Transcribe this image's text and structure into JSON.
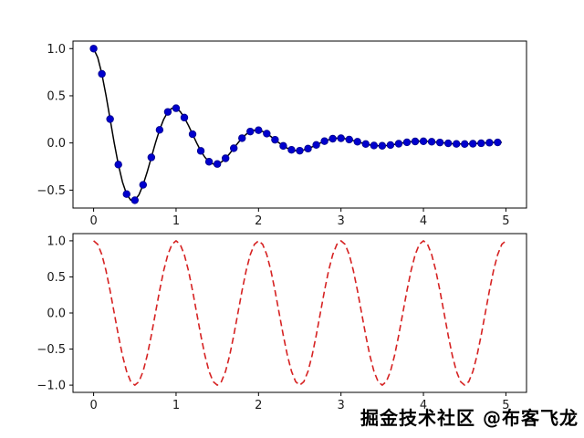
{
  "watermark": {
    "text": "掘金技术社区 @布客飞龙"
  },
  "colors": {
    "frame": "#000000",
    "damped_line": "#000000",
    "marker_blue": "#0000cd",
    "cosine_red": "#d62222",
    "background": "#ffffff"
  },
  "chart_data": [
    {
      "id": "top",
      "type": "line",
      "title": "",
      "xlabel": "",
      "ylabel": "",
      "xlim": [
        -0.25,
        5.25
      ],
      "ylim": [
        -0.69,
        1.08
      ],
      "grid": false,
      "legend": "none",
      "xticks": [
        0,
        1,
        2,
        3,
        4,
        5
      ],
      "xtick_labels": [
        "0",
        "1",
        "2",
        "3",
        "4",
        "5"
      ],
      "yticks": [
        1.0,
        0.5,
        0.0,
        -0.5
      ],
      "ytick_labels": [
        "1.0",
        "0.5",
        "0.0",
        "−0.5"
      ],
      "series": [
        {
          "name": "exp(-t)*cos(2*pi*t)",
          "style": "solid",
          "color": "#000000",
          "linewidth": 1.5,
          "x_start": 0,
          "x_step": 0.05,
          "markers": {
            "every": 2,
            "color": "#0000cd",
            "edge": "#00008b",
            "radius": 3.8
          },
          "values": [
            1.0,
            0.905,
            0.732,
            0.506,
            0.253,
            0.0,
            -0.229,
            -0.414,
            -0.542,
            -0.606,
            -0.607,
            -0.549,
            -0.444,
            -0.307,
            -0.153,
            0.0,
            0.139,
            0.251,
            0.329,
            0.368,
            0.368,
            0.333,
            0.269,
            0.186,
            0.093,
            0.0,
            -0.084,
            -0.152,
            -0.199,
            -0.223,
            -0.223,
            -0.202,
            -0.163,
            -0.113,
            -0.056,
            0.0,
            0.051,
            0.092,
            0.121,
            0.135,
            0.135,
            0.122,
            0.099,
            0.068,
            0.034,
            0.0,
            -0.031,
            -0.056,
            -0.073,
            -0.082,
            -0.082,
            -0.074,
            -0.06,
            -0.042,
            -0.021,
            0.0,
            0.019,
            0.034,
            0.045,
            0.05,
            0.05,
            0.045,
            0.036,
            0.025,
            0.013,
            0.0,
            -0.011,
            -0.021,
            -0.027,
            -0.03,
            -0.03,
            -0.027,
            -0.022,
            -0.015,
            -0.008,
            0.0,
            0.007,
            0.013,
            0.016,
            0.018,
            0.018,
            0.017,
            0.013,
            0.009,
            0.005,
            0.0,
            -0.004,
            -0.008,
            -0.01,
            -0.011,
            -0.011,
            -0.01,
            -0.008,
            -0.006,
            -0.003,
            0.0,
            0.003,
            0.005,
            0.006,
            0.007
          ]
        }
      ]
    },
    {
      "id": "bottom",
      "type": "line",
      "title": "",
      "xlabel": "",
      "ylabel": "",
      "xlim": [
        -0.25,
        5.25
      ],
      "ylim": [
        -1.1,
        1.1
      ],
      "grid": false,
      "legend": "none",
      "xticks": [
        0,
        1,
        2,
        3,
        4,
        5
      ],
      "xtick_labels": [
        "0",
        "1",
        "2",
        "3",
        "4",
        "5"
      ],
      "yticks": [
        1.0,
        0.5,
        0.0,
        -0.5,
        -1.0
      ],
      "ytick_labels": [
        "1.0",
        "0.5",
        "0.0",
        "−0.5",
        "−1.0"
      ],
      "series": [
        {
          "name": "cos(2*pi*t)",
          "style": "dashed",
          "color": "#d62222",
          "linewidth": 1.6,
          "x_start": 0,
          "x_step": 0.05,
          "values": [
            1.0,
            0.951,
            0.809,
            0.588,
            0.309,
            0.0,
            -0.309,
            -0.588,
            -0.809,
            -0.951,
            -1.0,
            -0.951,
            -0.809,
            -0.588,
            -0.309,
            0.0,
            0.309,
            0.588,
            0.809,
            0.951,
            1.0,
            0.951,
            0.809,
            0.588,
            0.309,
            0.0,
            -0.309,
            -0.588,
            -0.809,
            -0.951,
            -1.0,
            -0.951,
            -0.809,
            -0.588,
            -0.309,
            0.0,
            0.309,
            0.588,
            0.809,
            0.951,
            1.0,
            0.951,
            0.809,
            0.588,
            0.309,
            0.0,
            -0.309,
            -0.588,
            -0.809,
            -0.951,
            -1.0,
            -0.951,
            -0.809,
            -0.588,
            -0.309,
            0.0,
            0.309,
            0.588,
            0.809,
            0.951,
            1.0,
            0.951,
            0.809,
            0.588,
            0.309,
            0.0,
            -0.309,
            -0.588,
            -0.809,
            -0.951,
            -1.0,
            -0.951,
            -0.809,
            -0.588,
            -0.309,
            0.0,
            0.309,
            0.588,
            0.809,
            0.951,
            1.0,
            0.951,
            0.809,
            0.588,
            0.309,
            0.0,
            -0.309,
            -0.588,
            -0.809,
            -0.951,
            -1.0,
            -0.951,
            -0.809,
            -0.588,
            -0.309,
            0.0,
            0.309,
            0.588,
            0.809,
            0.951,
            1.0
          ]
        }
      ]
    }
  ]
}
